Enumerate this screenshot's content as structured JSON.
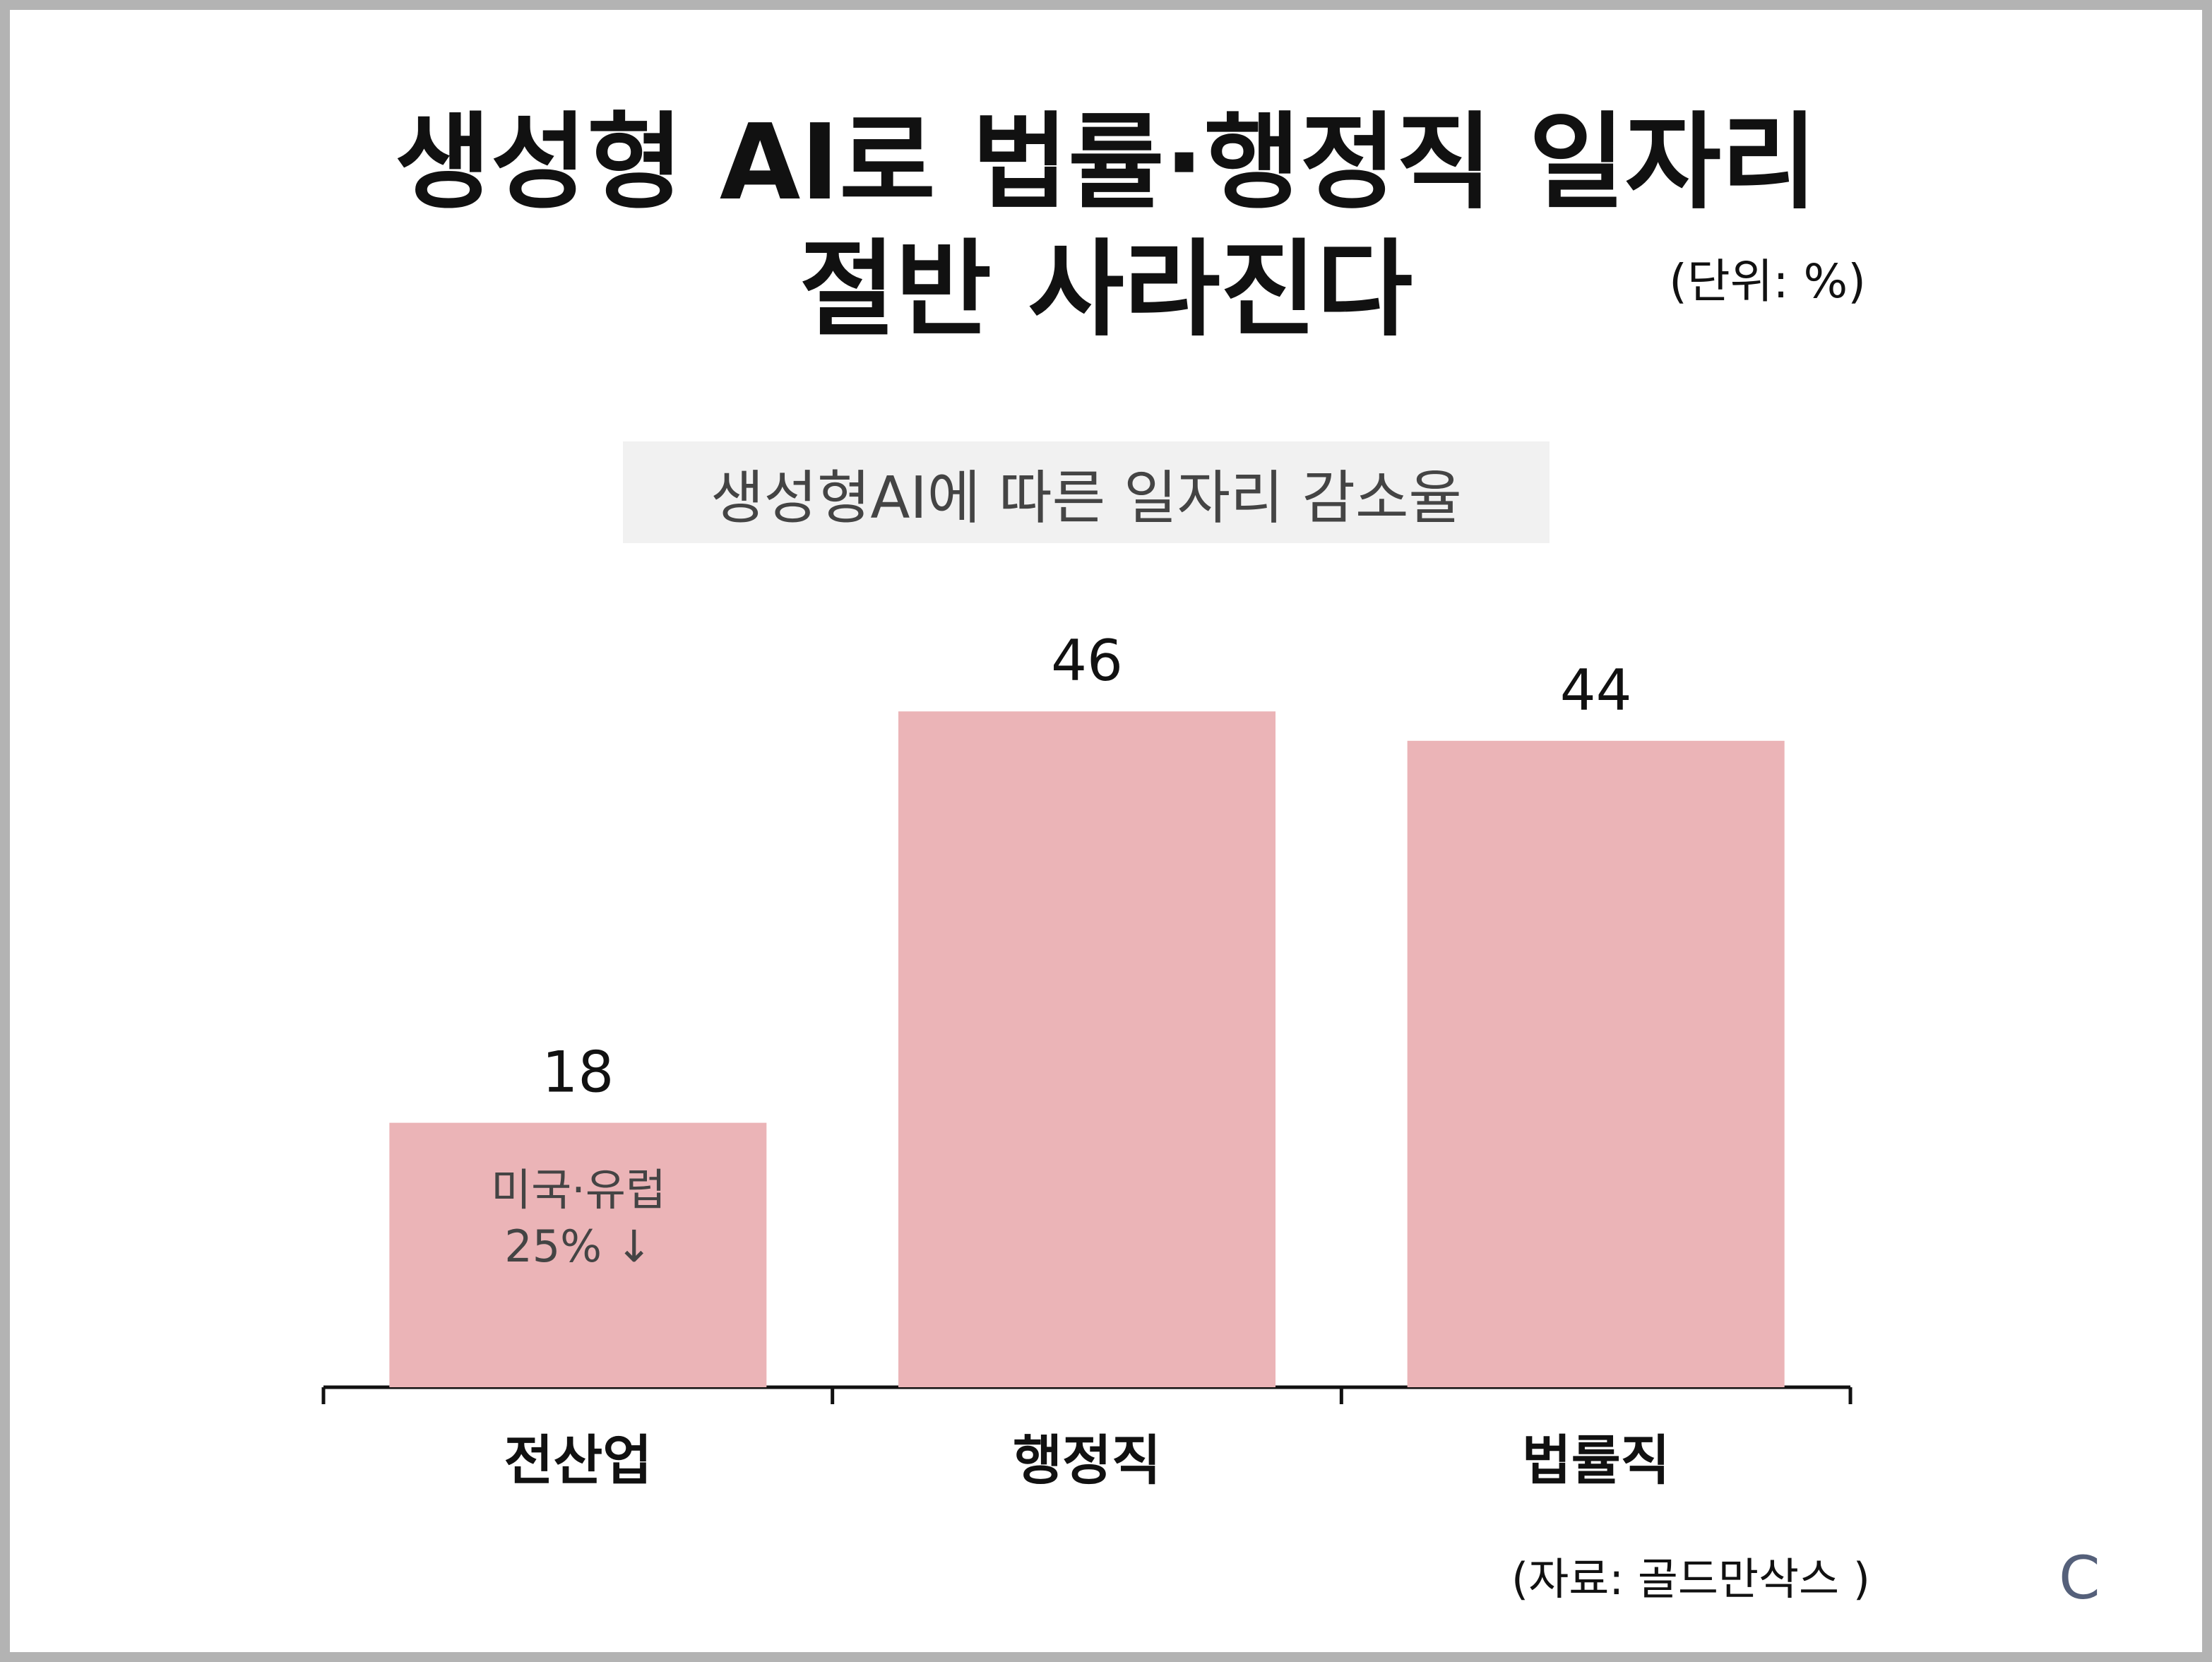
{
  "header": {
    "title_line1": "생성형 AI로 법률·행정직 일자리",
    "title_line2": "절반 사라진다",
    "unit": "(단위: %)"
  },
  "chart_data": {
    "type": "bar",
    "subtitle": "생성형AI에 따른 일자리 감소율",
    "categories": [
      "전산업",
      "행정직",
      "법률직"
    ],
    "values": [
      18,
      46,
      44
    ],
    "ylim": [
      0,
      50
    ],
    "grid": false,
    "bar_color": "#ebb4b7",
    "annotation": {
      "category": "전산업",
      "line1": "미국·유럽",
      "line2": "25% ↓"
    }
  },
  "footer": {
    "source": "(자료: 골드만삭스 )",
    "logo": "C"
  }
}
